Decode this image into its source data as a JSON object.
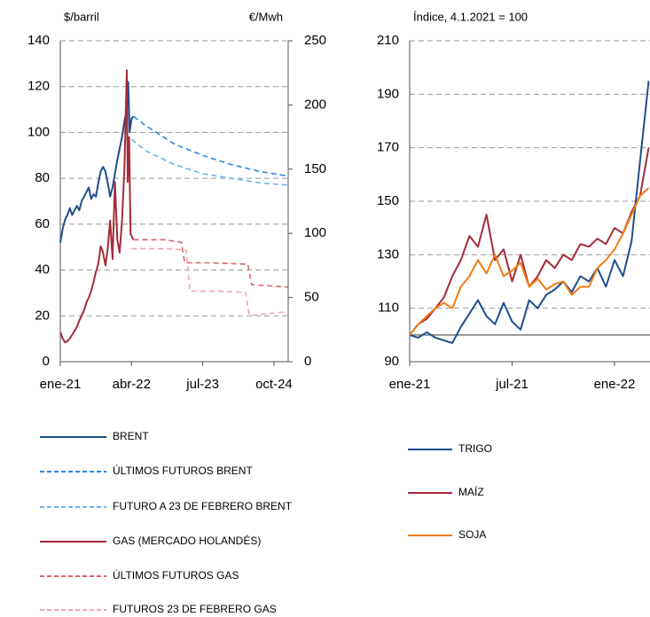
{
  "chart_data": [
    {
      "type": "line",
      "ylabel": "$/barril",
      "y2label": "€/Mwh",
      "xlim": [
        0,
        48
      ],
      "xticks": [
        {
          "value": 0,
          "label": "ene-21"
        },
        {
          "value": 15,
          "label": "abr-22"
        },
        {
          "value": 30,
          "label": "jul-23"
        },
        {
          "value": 45,
          "label": "oct-24"
        }
      ],
      "ylim": [
        0,
        140
      ],
      "yticks": [
        0,
        20,
        40,
        60,
        80,
        100,
        120,
        140
      ],
      "y2lim": [
        0,
        250
      ],
      "y2ticks": [
        0,
        50,
        100,
        150,
        200,
        250
      ],
      "grid": true,
      "series": [
        {
          "name": "BRENT",
          "color": "#1f4e8c",
          "style": "solid",
          "x": [
            0,
            0.5,
            1,
            1.5,
            2,
            2.5,
            3,
            3.5,
            4,
            4.5,
            5,
            5.5,
            6,
            6.5,
            7,
            7.5,
            8,
            8.5,
            9,
            9.5,
            10,
            10.5,
            11,
            11.5,
            12,
            12.5,
            13,
            13.5,
            14,
            14.3,
            14.6,
            15,
            15.4
          ],
          "values": [
            52,
            58,
            62,
            64,
            67,
            64,
            66,
            68,
            66,
            70,
            72,
            74,
            76,
            71,
            73,
            72,
            78,
            83,
            85,
            83,
            78,
            72,
            76,
            82,
            88,
            93,
            98,
            105,
            110,
            122,
            100,
            106,
            107
          ]
        },
        {
          "name": "ÚLTIMOS FUTUROS BRENT",
          "color": "#2e86de",
          "style": "dashed",
          "x": [
            15.4,
            18,
            24,
            30,
            36,
            42,
            48
          ],
          "values": [
            107,
            103,
            95,
            90,
            86,
            83,
            81
          ]
        },
        {
          "name": "FUTURO A 23 DE FEBRERO BRENT",
          "color": "#6fb0f0",
          "style": "dashed",
          "x": [
            15,
            18,
            24,
            30,
            36,
            42,
            48
          ],
          "values": [
            97,
            92,
            86,
            82,
            80,
            78,
            77
          ]
        },
        {
          "name": "GAS (MERCADO HOLANDÉS)",
          "color": "#a52a3a",
          "style": "solid",
          "axis": "y2",
          "x": [
            0,
            0.5,
            1,
            1.5,
            2,
            2.5,
            3,
            3.5,
            4,
            4.5,
            5,
            5.5,
            6,
            6.5,
            7,
            7.5,
            8,
            8.5,
            9,
            9.5,
            10,
            10.5,
            11,
            11.5,
            12,
            12.5,
            13,
            13.5,
            14,
            14.2,
            14.5,
            14.8,
            15,
            15.4
          ],
          "values": [
            23,
            18,
            15,
            16,
            18,
            21,
            24,
            27,
            32,
            36,
            40,
            46,
            50,
            55,
            62,
            70,
            76,
            90,
            85,
            75,
            88,
            110,
            80,
            140,
            95,
            85,
            110,
            150,
            227,
            140,
            175,
            100,
            98,
            95
          ]
        },
        {
          "name": "ÚLTIMOS FUTUROS GAS",
          "color": "#d9646e",
          "style": "dashed",
          "axis": "y2",
          "x": [
            15.4,
            22,
            25.5,
            26.2,
            32,
            39.5,
            40.3,
            48
          ],
          "values": [
            95,
            95,
            93,
            77,
            77,
            76,
            60,
            58
          ]
        },
        {
          "name": "FUTUROS 23 DE FEBRERO GAS",
          "color": "#f0a8b0",
          "style": "dashed",
          "axis": "y2",
          "x": [
            15,
            22,
            26.5,
            27.3,
            33,
            39,
            39.8,
            48
          ],
          "values": [
            88,
            88,
            87,
            55,
            55,
            54,
            36,
            39
          ]
        }
      ]
    },
    {
      "type": "line",
      "ylabel": "Índice, 4.1.2021  = 100",
      "xlim": [
        0,
        14.08
      ],
      "xticks": [
        {
          "value": 0,
          "label": "ene-21"
        },
        {
          "value": 6,
          "label": "jul-21"
        },
        {
          "value": 12,
          "label": "ene-22"
        }
      ],
      "ylim": [
        90,
        210
      ],
      "yticks": [
        90,
        110,
        130,
        150,
        170,
        190,
        210
      ],
      "grid": true,
      "reference_line": 100,
      "series": [
        {
          "name": "TRIGO",
          "color": "#1f4e8c",
          "style": "solid",
          "x": [
            0,
            0.5,
            1,
            1.5,
            2,
            2.5,
            3,
            3.5,
            4,
            4.5,
            5,
            5.5,
            6,
            6.5,
            7,
            7.5,
            8,
            8.5,
            9,
            9.5,
            10,
            10.5,
            11,
            11.5,
            12,
            12.5,
            13,
            13.5,
            14
          ],
          "values": [
            100,
            99,
            101,
            99,
            98,
            97,
            103,
            108,
            113,
            107,
            104,
            112,
            105,
            102,
            113,
            110,
            115,
            117,
            120,
            116,
            122,
            120,
            125,
            118,
            128,
            122,
            135,
            165,
            195
          ]
        },
        {
          "name": "MAÍZ",
          "color": "#a52a3a",
          "style": "solid",
          "x": [
            0,
            0.5,
            1,
            1.5,
            2,
            2.5,
            3,
            3.5,
            4,
            4.5,
            5,
            5.5,
            6,
            6.5,
            7,
            7.5,
            8,
            8.5,
            9,
            9.5,
            10,
            10.5,
            11,
            11.5,
            12,
            12.5,
            13,
            13.5,
            14
          ],
          "values": [
            100,
            104,
            106,
            110,
            114,
            122,
            128,
            137,
            133,
            145,
            128,
            132,
            120,
            130,
            118,
            122,
            128,
            125,
            130,
            128,
            134,
            133,
            136,
            134,
            140,
            138,
            146,
            152,
            170
          ]
        },
        {
          "name": "SOJA",
          "color": "#f07c12",
          "style": "solid",
          "x": [
            0,
            0.5,
            1,
            1.5,
            2,
            2.5,
            3,
            3.5,
            4,
            4.5,
            5,
            5.5,
            6,
            6.5,
            7,
            7.5,
            8,
            8.5,
            9,
            9.5,
            10,
            10.5,
            11,
            11.5,
            12,
            12.5,
            13,
            13.5,
            14
          ],
          "values": [
            100,
            104,
            107,
            110,
            112,
            110,
            118,
            122,
            128,
            123,
            130,
            122,
            124,
            127,
            118,
            121,
            117,
            119,
            120,
            115,
            118,
            118,
            125,
            128,
            132,
            138,
            145,
            152,
            155
          ]
        }
      ]
    }
  ]
}
